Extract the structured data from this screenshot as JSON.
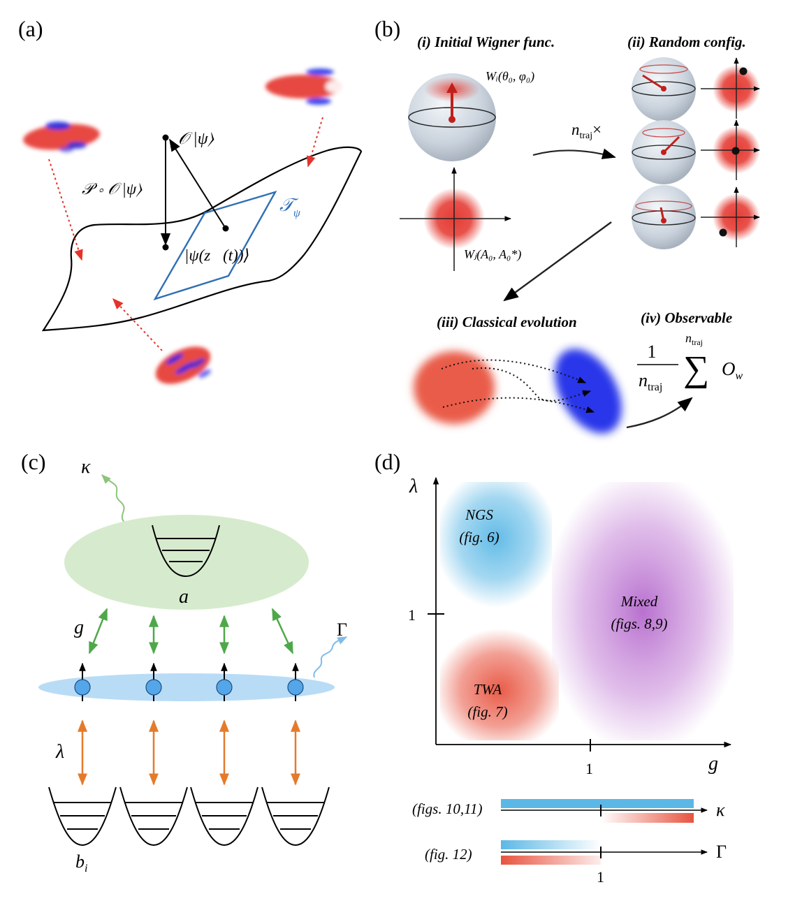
{
  "panels": {
    "a": {
      "label": "(a)",
      "ket_O": "𝒪 |ψ⟩",
      "ket_PO": "𝒫 ∘ 𝒪 |ψ⟩",
      "tangent": "𝒯",
      "tangent_sub": "ψ",
      "state": "|ψ(z⃗(t))⟩"
    },
    "b": {
      "label": "(b)",
      "step_i": "(i) Initial Wigner func.",
      "step_ii": "(ii) Random config.",
      "step_iii": "(iii) Classical evolution",
      "step_iv": "(iv) Observable",
      "wigner_spin": "Wᵢ(θ₀, φ₀)",
      "wigner_boson": "Wⱼ(A₀, A₀*)",
      "ntraj_times": "n",
      "ntraj_times_sub": "traj",
      "times_sign": "×",
      "formula_one": "1",
      "formula_den": "n",
      "formula_den_sub": "traj",
      "formula_sum_top": "n",
      "formula_sum_top_sub": "traj",
      "formula_sum": "∑",
      "formula_O": "O",
      "formula_O_sub": "w"
    },
    "c": {
      "label": "(c)",
      "kappa": "κ",
      "cavity": "a",
      "coupling_g": "g",
      "gamma": "Γ",
      "lambda": "λ",
      "bath": "b",
      "bath_sub": "i"
    },
    "d": {
      "label": "(d)",
      "y_axis": "λ",
      "x_axis": "g",
      "y_tick": "1",
      "x_tick": "1",
      "ngs_line1": "NGS",
      "ngs_line2": "(fig. 6)",
      "twa_line1": "TWA",
      "twa_line2": "(fig. 7)",
      "mixed_line1": "Mixed",
      "mixed_line2": "(figs. 8,9)",
      "kappa_caption": "(figs. 10,11)",
      "kappa_axis": "κ",
      "gamma_caption": "(fig. 12)",
      "gamma_axis": "Γ",
      "gamma_tick": "1"
    }
  },
  "colors": {
    "ngs": "#5bb8e6",
    "twa": "#e8533f",
    "mixed": "#b061c9",
    "tangent": "#2f6fb5",
    "green": "#4ea84a",
    "orange": "#e47b2b",
    "spin_blue": "#54a6e8",
    "cavity": "#d6ebcd",
    "spin_band": "#b9dcf6",
    "red": "#e4332b"
  },
  "chart_data": {
    "type": "region map",
    "xlabel": "g",
    "ylabel": "λ",
    "x_ticks": [
      1
    ],
    "y_ticks": [
      1
    ],
    "regions": [
      {
        "name": "NGS (fig. 6)",
        "g": "< 1",
        "λ": "> 1"
      },
      {
        "name": "TWA (fig. 7)",
        "g": "< 1",
        "λ": "< 1"
      },
      {
        "name": "Mixed (figs. 8,9)",
        "g": "> 1",
        "λ": "all"
      }
    ],
    "kappa_bar": {
      "caption": "(figs. 10,11)",
      "NGS": "all κ",
      "TWA": "κ > 1"
    },
    "gamma_bar": {
      "caption": "(fig. 12)",
      "NGS": "Γ < 1",
      "TWA": "Γ < 1"
    }
  }
}
